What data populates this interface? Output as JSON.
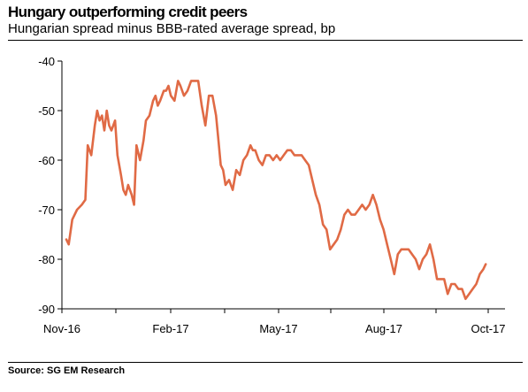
{
  "title": "Hungary outperforming credit peers",
  "subtitle": "Hungarian spread minus BBB-rated average spread, bp",
  "source": "Source: SG EM Research",
  "chart_data": {
    "type": "line",
    "title": "Hungary outperforming credit peers",
    "subtitle": "Hungarian spread minus BBB-rated average spread, bp",
    "xlabel": "",
    "ylabel": "",
    "x_ticks": [
      "Nov-16",
      "Feb-17",
      "May-17",
      "Aug-17",
      "Oct-17"
    ],
    "y_ticks": [
      -40,
      -50,
      -60,
      -70,
      -80,
      -90
    ],
    "ylim": [
      -90,
      -40
    ],
    "xlim": [
      "2016-11-01",
      "2017-10-31"
    ],
    "grid": false,
    "line_color": "#E06A45",
    "series": [
      {
        "x": [
          "2016-11-01",
          "2016-11-03",
          "2016-11-06",
          "2016-11-10",
          "2016-11-14",
          "2016-11-17",
          "2016-11-19",
          "2016-11-22",
          "2016-11-25",
          "2016-11-27",
          "2016-11-29",
          "2016-12-01",
          "2016-12-03",
          "2016-12-05",
          "2016-12-07",
          "2016-12-09",
          "2016-12-12",
          "2016-12-14",
          "2016-12-17",
          "2016-12-19",
          "2016-12-21",
          "2016-12-23",
          "2016-12-26",
          "2016-12-28",
          "2016-12-30",
          "2017-01-02",
          "2017-01-05",
          "2017-01-07",
          "2017-01-10",
          "2017-01-13",
          "2017-01-15",
          "2017-01-17",
          "2017-01-19",
          "2017-01-22",
          "2017-01-24",
          "2017-01-26",
          "2017-01-28",
          "2017-01-31",
          "2017-02-03",
          "2017-02-05",
          "2017-02-08",
          "2017-02-11",
          "2017-02-14",
          "2017-02-17",
          "2017-02-20",
          "2017-02-23",
          "2017-02-26",
          "2017-03-01",
          "2017-03-04",
          "2017-03-07",
          "2017-03-09",
          "2017-03-11",
          "2017-03-13",
          "2017-03-15",
          "2017-03-18",
          "2017-03-21",
          "2017-03-24",
          "2017-03-27",
          "2017-03-30",
          "2017-04-02",
          "2017-04-05",
          "2017-04-07",
          "2017-04-09",
          "2017-04-12",
          "2017-04-15",
          "2017-04-18",
          "2017-04-21",
          "2017-04-24",
          "2017-04-27",
          "2017-04-30",
          "2017-05-03",
          "2017-05-06",
          "2017-05-09",
          "2017-05-12",
          "2017-05-15",
          "2017-05-18",
          "2017-05-21",
          "2017-05-24",
          "2017-05-27",
          "2017-05-30",
          "2017-06-02",
          "2017-06-05",
          "2017-06-08",
          "2017-06-11",
          "2017-06-14",
          "2017-06-17",
          "2017-06-20",
          "2017-06-23",
          "2017-06-26",
          "2017-06-29",
          "2017-07-02",
          "2017-07-05",
          "2017-07-08",
          "2017-07-11",
          "2017-07-14",
          "2017-07-17",
          "2017-07-20",
          "2017-07-23",
          "2017-07-26",
          "2017-07-29",
          "2017-08-01",
          "2017-08-04",
          "2017-08-07",
          "2017-08-10",
          "2017-08-13",
          "2017-08-16",
          "2017-08-19",
          "2017-08-22",
          "2017-08-25",
          "2017-08-28",
          "2017-08-31",
          "2017-09-03",
          "2017-09-06",
          "2017-09-09",
          "2017-09-12",
          "2017-09-15",
          "2017-09-18",
          "2017-09-21",
          "2017-09-24",
          "2017-09-27",
          "2017-09-30",
          "2017-10-03",
          "2017-10-06",
          "2017-10-09",
          "2017-10-12",
          "2017-10-15",
          "2017-10-18",
          "2017-10-20"
        ],
        "values": [
          -76,
          -77,
          -72,
          -70,
          -69,
          -68,
          -57,
          -59,
          -53,
          -50,
          -52,
          -51,
          -54,
          -50,
          -53,
          -54,
          -52,
          -59,
          -63,
          -66,
          -67,
          -65,
          -67,
          -69,
          -57,
          -60,
          -56,
          -52,
          -51,
          -48,
          -47,
          -49,
          -48,
          -46,
          -46,
          -45,
          -47,
          -48,
          -44,
          -45,
          -47,
          -46,
          -44,
          -44,
          -44,
          -49,
          -53,
          -47,
          -47,
          -51,
          -56,
          -61,
          -62,
          -65,
          -64,
          -66,
          -62,
          -63,
          -60,
          -59,
          -57,
          -58,
          -58,
          -60,
          -61,
          -59,
          -59,
          -60,
          -59,
          -60,
          -59,
          -58,
          -58,
          -59,
          -59,
          -59,
          -60,
          -61,
          -64,
          -67,
          -69,
          -73,
          -74,
          -78,
          -77,
          -76,
          -74,
          -71,
          -70,
          -71,
          -71,
          -70,
          -69,
          -70,
          -69,
          -67,
          -69,
          -72,
          -74,
          -77,
          -80,
          -83,
          -79,
          -78,
          -78,
          -78,
          -79,
          -80,
          -82,
          -80,
          -79,
          -77,
          -80,
          -84,
          -84,
          -84,
          -87,
          -85,
          -85,
          -86,
          -86,
          -88,
          -87,
          -86,
          -85,
          -83,
          -82,
          -81
        ]
      }
    ]
  }
}
